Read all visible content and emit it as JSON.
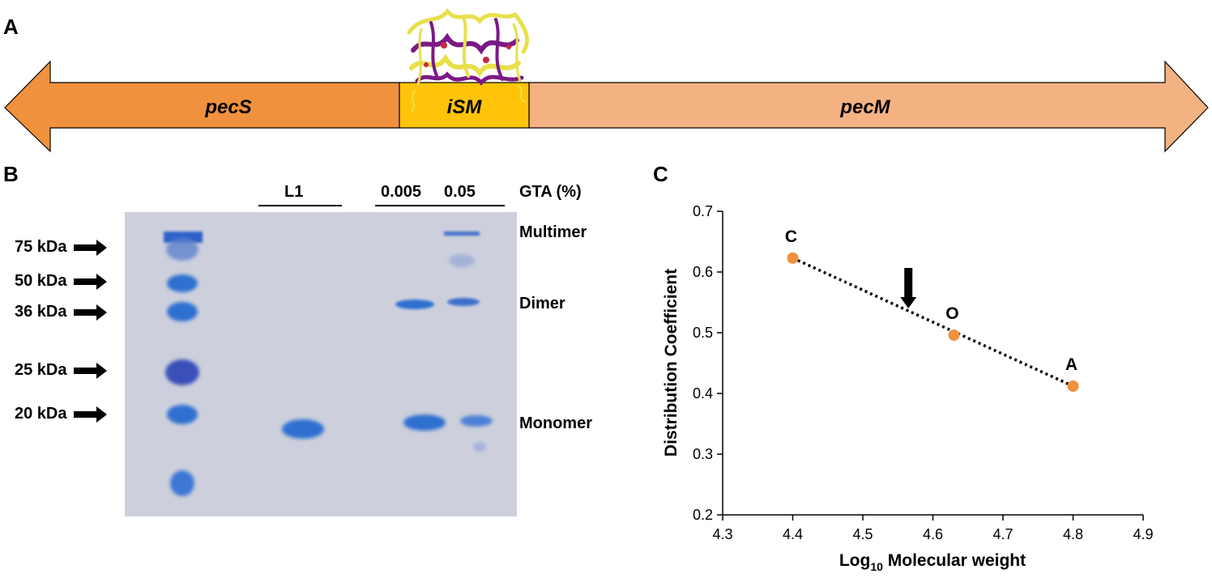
{
  "panels": {
    "a": "A",
    "b": "B",
    "c": "C"
  },
  "gene_map": {
    "left_gene": "pecS",
    "middle_gene": "iSM",
    "right_gene": "pecM",
    "colors": {
      "left": "#f0913e",
      "middle": "#ffc40a",
      "right": "#f4b282",
      "structure_purple": "#7b1a86",
      "structure_yellow": "#e7e04a"
    }
  },
  "gel": {
    "header": {
      "lane_l1": "L1",
      "lane_low": "0.005",
      "lane_high": "0.05",
      "condition": "GTA (%)"
    },
    "markers": [
      "75 kDa",
      "50 kDa",
      "36 kDa",
      "25 kDa",
      "20 kDa"
    ],
    "bands": {
      "multimer": "Multimer",
      "dimer": "Dimer",
      "monomer": "Monomer"
    },
    "colors": {
      "background": "#cdd0dc",
      "band": "#2f6fd0"
    }
  },
  "chart_data": {
    "type": "scatter",
    "xlabel_main": "Log",
    "xlabel_sub": "10",
    "xlabel_rest": " Molecular weight",
    "ylabel": "Distribution Coefficient",
    "xlim": [
      4.3,
      4.9
    ],
    "ylim": [
      0.2,
      0.7
    ],
    "x_ticks": [
      "4.3",
      "4.4",
      "4.5",
      "4.6",
      "4.7",
      "4.8",
      "4.9"
    ],
    "y_ticks": [
      "0.2",
      "0.3",
      "0.4",
      "0.5",
      "0.6",
      "0.7"
    ],
    "points": [
      {
        "label": "C",
        "x": 4.4,
        "y": 0.623
      },
      {
        "label": "O",
        "x": 4.63,
        "y": 0.496
      },
      {
        "label": "A",
        "x": 4.8,
        "y": 0.412
      }
    ],
    "trendline": {
      "x": [
        4.4,
        4.8
      ],
      "y": [
        0.623,
        0.412
      ],
      "style": "dotted"
    },
    "arrow_x": 4.565,
    "marker_color": "#f0913e",
    "grid": false,
    "legend": "none"
  }
}
